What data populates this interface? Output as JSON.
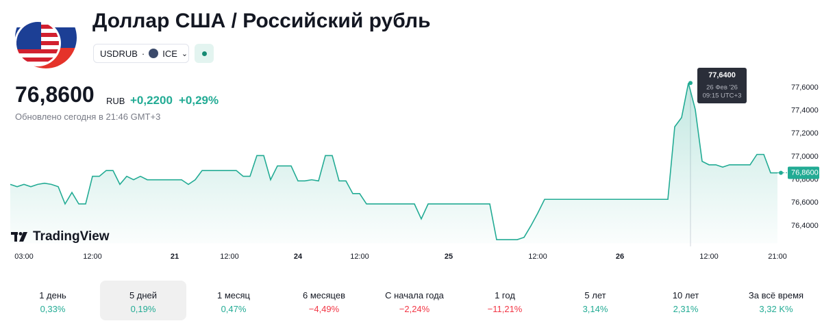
{
  "header": {
    "title": "Доллар США / Российский рубль",
    "symbol": "USDRUB",
    "exchange": "ICE"
  },
  "quote": {
    "price": "76,8600",
    "currency": "RUB",
    "change": "+0,2200",
    "change_percent": "+0,29%",
    "updated": "Обновлено сегодня в 21:46 GMT+3"
  },
  "logo": "TradingView",
  "chart_data": {
    "type": "line",
    "color": "#22ab94",
    "categories": [
      null,
      null,
      "03:00",
      null,
      null,
      null,
      null,
      null,
      null,
      null,
      null,
      null,
      "12:00",
      null,
      null,
      null,
      null,
      null,
      null,
      null,
      null,
      null,
      null,
      null,
      "21",
      null,
      null,
      null,
      null,
      null,
      null,
      null,
      "12:00",
      null,
      null,
      null,
      null,
      null,
      null,
      null,
      null,
      null,
      "24",
      null,
      null,
      null,
      null,
      null,
      null,
      null,
      null,
      "12:00",
      null,
      null,
      null,
      null,
      null,
      null,
      null,
      null,
      null,
      null,
      null,
      null,
      "25",
      null,
      null,
      null,
      null,
      null,
      null,
      null,
      null,
      null,
      null,
      null,
      null,
      "12:00",
      null,
      null,
      null,
      null,
      null,
      null,
      null,
      null,
      null,
      null,
      null,
      "26",
      null,
      null,
      null,
      null,
      null,
      null,
      null,
      null,
      null,
      null,
      null,
      null,
      "12:00",
      null,
      null,
      null,
      null,
      null,
      null,
      null,
      null,
      null,
      "21:00"
    ],
    "values": [
      76.76,
      76.74,
      76.76,
      76.74,
      76.76,
      76.77,
      76.76,
      76.74,
      76.59,
      76.69,
      76.59,
      76.59,
      76.83,
      76.83,
      76.88,
      76.88,
      76.76,
      76.83,
      76.8,
      76.83,
      76.8,
      76.8,
      76.8,
      76.8,
      76.8,
      76.8,
      76.76,
      76.8,
      76.88,
      76.88,
      76.88,
      76.88,
      76.88,
      76.88,
      76.83,
      76.83,
      77.01,
      77.01,
      76.8,
      76.92,
      76.92,
      76.92,
      76.79,
      76.79,
      76.8,
      76.79,
      77.01,
      77.01,
      76.79,
      76.79,
      76.68,
      76.68,
      76.59,
      76.59,
      76.59,
      76.59,
      76.59,
      76.59,
      76.59,
      76.59,
      76.46,
      76.59,
      76.59,
      76.59,
      76.59,
      76.59,
      76.59,
      76.59,
      76.59,
      76.59,
      76.59,
      76.28,
      76.28,
      76.28,
      76.28,
      76.3,
      76.4,
      76.51,
      76.63,
      76.63,
      76.63,
      76.63,
      76.63,
      76.63,
      76.63,
      76.63,
      76.63,
      76.63,
      76.63,
      76.63,
      76.63,
      76.63,
      76.63,
      76.63,
      76.63,
      76.63,
      76.63,
      77.26,
      77.34,
      77.64,
      77.41,
      76.96,
      76.93,
      76.93,
      76.91,
      76.93,
      76.93,
      76.93,
      76.93,
      77.02,
      77.02,
      76.86,
      76.86
    ],
    "ylim": [
      76.25,
      77.65
    ],
    "yticks": [
      {
        "value": 76.4,
        "label": "76,4000"
      },
      {
        "value": 76.6,
        "label": "76,6000"
      },
      {
        "value": 76.8,
        "label": "76,8000"
      },
      {
        "value": 77.0,
        "label": "77,0000"
      },
      {
        "value": 77.2,
        "label": "77,2000"
      },
      {
        "value": 77.4,
        "label": "77,4000"
      },
      {
        "value": 77.6,
        "label": "77,6000"
      }
    ],
    "grid": false,
    "last_price": {
      "value": 76.86,
      "label": "76,8600"
    },
    "crosshair": {
      "value": 77.64,
      "label": "77,6400",
      "date": "26 Фев '26",
      "time": "09:15 UTC+3"
    }
  },
  "periods": [
    {
      "label": "1 день",
      "change": "0,33%",
      "color": "#22ab94"
    },
    {
      "label": "5 дней",
      "change": "0,19%",
      "color": "#22ab94"
    },
    {
      "label": "1 месяц",
      "change": "0,47%",
      "color": "#22ab94"
    },
    {
      "label": "6 месяцев",
      "change": "−4,49%",
      "color": "#f23645"
    },
    {
      "label": "С начала года",
      "change": "−2,24%",
      "color": "#f23645"
    },
    {
      "label": "1 год",
      "change": "−11,21%",
      "color": "#f23645"
    },
    {
      "label": "5 лет",
      "change": "3,14%",
      "color": "#22ab94"
    },
    {
      "label": "10 лет",
      "change": "2,31%",
      "color": "#22ab94"
    },
    {
      "label": "За всё время",
      "change": "3,32 K%",
      "color": "#22ab94"
    }
  ]
}
